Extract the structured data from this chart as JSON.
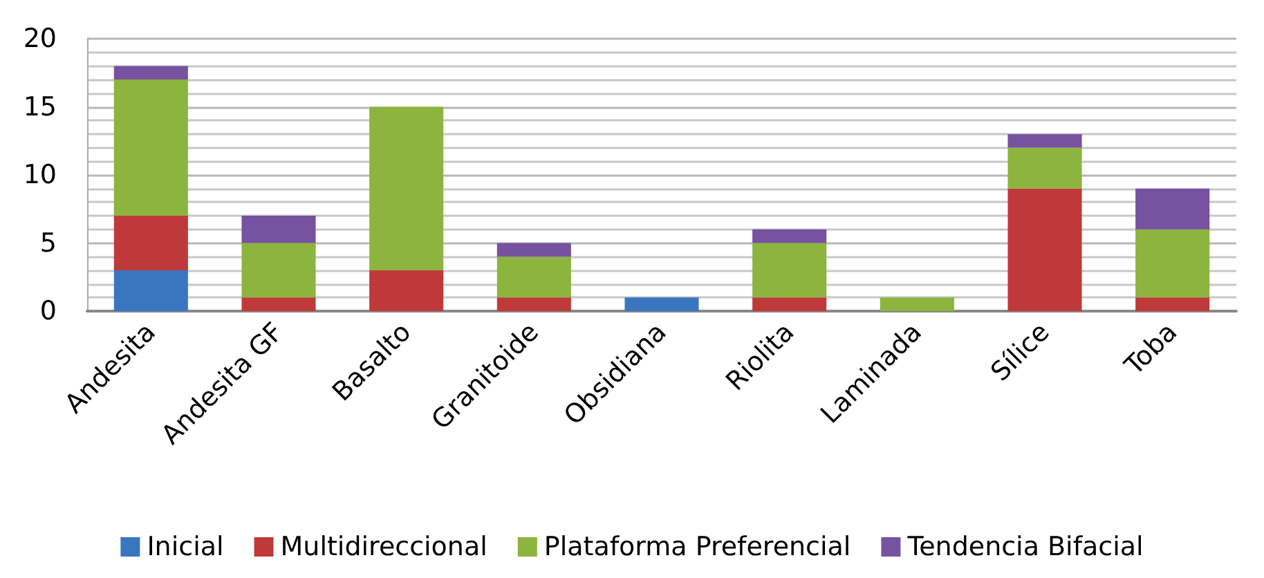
{
  "chart_data": {
    "type": "bar",
    "stacked": true,
    "categories": [
      "Andesita",
      "Andesita GF",
      "Basalto",
      "Granitoide",
      "Obsidiana",
      "Riolita",
      "Laminada",
      "Sílice",
      "Toba"
    ],
    "series": [
      {
        "name": "Inicial",
        "color": "#3a76c0",
        "values": [
          3,
          0,
          0,
          0,
          1,
          0,
          0,
          0,
          0
        ]
      },
      {
        "name": "Multidireccional",
        "color": "#c0393a",
        "values": [
          4,
          1,
          3,
          1,
          0,
          1,
          0,
          9,
          1
        ]
      },
      {
        "name": "Plataforma Preferencial",
        "color": "#8cb43e",
        "values": [
          10,
          4,
          12,
          3,
          0,
          4,
          1,
          3,
          5
        ]
      },
      {
        "name": "Tendencia Bifacial",
        "color": "#7652a0",
        "values": [
          1,
          2,
          0,
          1,
          0,
          1,
          0,
          1,
          3
        ]
      }
    ],
    "ylim": [
      0,
      20
    ],
    "yticks": [
      0,
      5,
      10,
      15,
      20
    ],
    "grid": "y",
    "legend": "bottom"
  }
}
